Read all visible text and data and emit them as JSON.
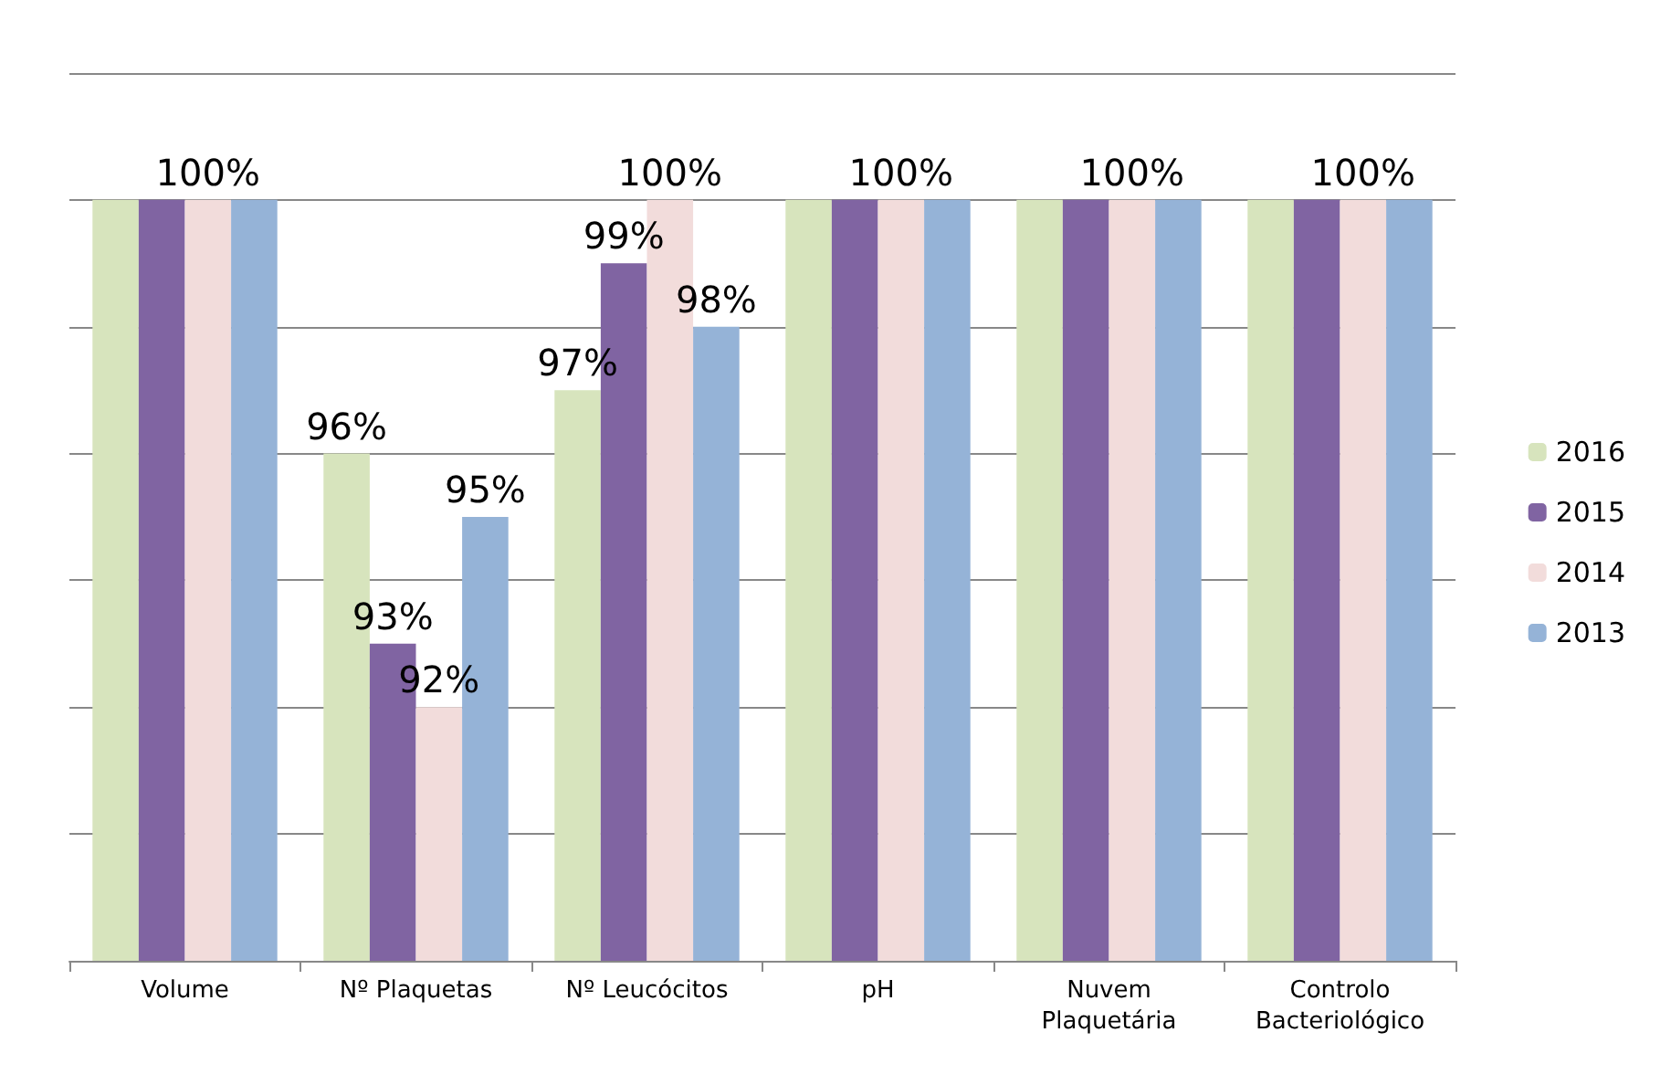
{
  "chart_data": {
    "type": "bar",
    "categories": [
      "Volume",
      "Nº Plaquetas",
      "Nº Leucócitos",
      "pH",
      "Nuvem\nPlaquetária",
      "Controlo\nBacteriológico"
    ],
    "series": [
      {
        "name": "2016",
        "color": "#d7e4bd",
        "values": [
          100,
          96,
          97,
          100,
          100,
          100
        ],
        "value_labels": [
          null,
          "96%",
          "97%",
          null,
          null,
          null
        ]
      },
      {
        "name": "2015",
        "color": "#8064a2",
        "values": [
          100,
          93,
          99,
          100,
          100,
          100
        ],
        "value_labels": [
          null,
          "93%",
          "99%",
          null,
          null,
          null
        ]
      },
      {
        "name": "2014",
        "color": "#f2dcdb",
        "values": [
          100,
          92,
          100,
          100,
          100,
          100
        ],
        "value_labels": [
          "100%",
          "92%",
          "100%",
          "100%",
          "100%",
          "100%"
        ]
      },
      {
        "name": "2013",
        "color": "#95b3d7",
        "values": [
          100,
          95,
          98,
          100,
          100,
          100
        ],
        "value_labels": [
          null,
          "95%",
          "98%",
          null,
          null,
          null
        ]
      }
    ],
    "ylim": [
      88,
      102
    ],
    "yticks": [
      {
        "value": 88,
        "label": null
      },
      {
        "value": 90,
        "label": null
      },
      {
        "value": 92,
        "label": null
      },
      {
        "value": 94,
        "label": null
      },
      {
        "value": 96,
        "label": null
      },
      {
        "value": 98,
        "label": null
      },
      {
        "value": 100,
        "label": null
      },
      {
        "value": 102,
        "label": null
      }
    ],
    "tick_labels": "x",
    "grid": "y",
    "legend": "right"
  }
}
